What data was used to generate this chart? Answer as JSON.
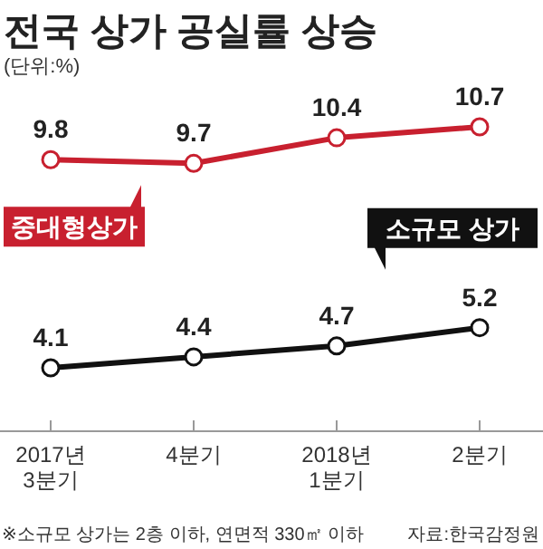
{
  "chart_data": {
    "type": "line",
    "title": "전국 상가 공실률 상승",
    "subtitle": "(단위:%)",
    "categories": [
      "2017년\n3분기",
      "4분기",
      "2018년\n1분기",
      "2분기"
    ],
    "series": [
      {
        "name": "중대형상가",
        "color": "#c8202f",
        "values": [
          9.8,
          9.7,
          10.4,
          10.7
        ]
      },
      {
        "name": "소규모 상가",
        "color": "#111111",
        "values": [
          4.1,
          4.4,
          4.7,
          5.2
        ]
      }
    ],
    "data_labels": true,
    "marker": "circle",
    "line_style": "solid",
    "annotations": [
      "※소규모 상가는 2층 이하, 연면적 330㎡ 이하",
      "자료:한국감정원"
    ]
  }
}
